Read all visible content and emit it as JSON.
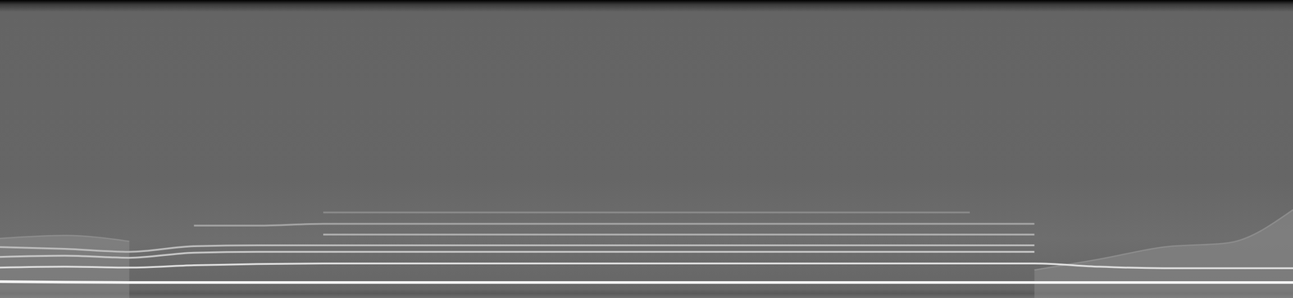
{
  "chart_data": {
    "type": "spectrogram",
    "tick_labels": false,
    "xlim": [
      0,
      100
    ],
    "ylim": [
      0,
      100
    ],
    "x": [
      0,
      5,
      10,
      15,
      20,
      25,
      30,
      35,
      40,
      45,
      50,
      55,
      60,
      65,
      70,
      75,
      80,
      85,
      90,
      95,
      100
    ],
    "series": [
      {
        "type": "area",
        "color": "#8c8c8c",
        "values": [
          20,
          21,
          19,
          null,
          null,
          null,
          null,
          null,
          null,
          null,
          null,
          null,
          null,
          null,
          null,
          null,
          9.4,
          13,
          17.1,
          18.5,
          29.6
        ]
      },
      {
        "type": "line",
        "color": "#f4f4f4",
        "values": [
          5.5,
          5.3,
          5.2,
          5.2,
          5.2,
          5.2,
          5.2,
          5.2,
          5.2,
          5.2,
          5.2,
          5.2,
          5.2,
          5.2,
          5.2,
          5.2,
          5.2,
          5.2,
          5.2,
          5.2,
          5.2
        ]
      },
      {
        "type": "line",
        "color": "#e0e0e0",
        "values": [
          10.2,
          10.5,
          10.2,
          11,
          11.4,
          11.6,
          11.6,
          11.6,
          11.6,
          11.6,
          11.6,
          11.6,
          11.6,
          11.6,
          11.6,
          11.6,
          11.6,
          10.5,
          10,
          10,
          10
        ]
      },
      {
        "type": "line",
        "color": "#c8c8c8",
        "values": [
          13.8,
          14.2,
          13.5,
          15.2,
          15.5,
          15.5,
          15.5,
          15.5,
          15.5,
          15.5,
          15.5,
          15.5,
          15.5,
          15.5,
          15.5,
          15.5,
          15.5,
          null,
          null,
          null,
          null
        ]
      },
      {
        "type": "line",
        "color": "#bdbdbd",
        "values": [
          17.1,
          16.5,
          15.5,
          17.4,
          17.7,
          17.7,
          17.7,
          17.7,
          17.7,
          17.7,
          17.7,
          17.7,
          17.7,
          17.7,
          17.7,
          17.7,
          17.7,
          null,
          null,
          null,
          null
        ]
      },
      {
        "type": "line",
        "color": "#b0b0b0",
        "values": [
          null,
          null,
          null,
          null,
          null,
          21.3,
          21.3,
          21.3,
          21.3,
          21.3,
          21.3,
          21.3,
          21.3,
          21.3,
          21.3,
          21.3,
          21.3,
          null,
          null,
          null,
          null
        ]
      },
      {
        "type": "line",
        "color": "#a4a4a4",
        "values": [
          null,
          null,
          null,
          24.3,
          24.3,
          24.9,
          24.9,
          24.9,
          24.9,
          24.9,
          24.9,
          24.9,
          24.9,
          24.9,
          24.9,
          24.9,
          24.9,
          null,
          null,
          null,
          null
        ]
      },
      {
        "type": "line",
        "color": "#8a8a8a",
        "values": [
          null,
          null,
          null,
          null,
          null,
          28.7,
          28.7,
          28.7,
          28.7,
          28.7,
          28.7,
          28.7,
          28.7,
          28.7,
          28.7,
          28.7,
          null,
          null,
          null,
          null,
          null
        ]
      }
    ]
  }
}
